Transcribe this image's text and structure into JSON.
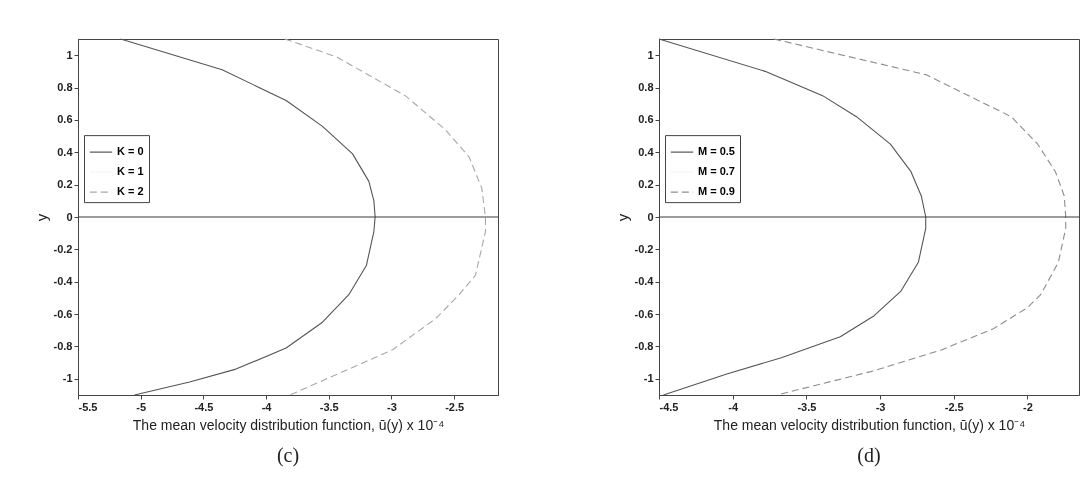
{
  "chart_data": [
    {
      "type": "line",
      "xlabel": "The mean velocity distribution function, ū(y) x 10⁻⁴",
      "ylabel": "y",
      "annotations": [
        "(c)"
      ],
      "xlim": [
        -5.5,
        -2.15
      ],
      "xticks": [
        -5.5,
        -5,
        -4.5,
        -4,
        -3.5,
        -3,
        -2.5
      ],
      "ylim": [
        -1.1,
        1.1
      ],
      "yticks": [
        -1,
        -0.8,
        -0.6,
        -0.4,
        -0.2,
        0,
        0.2,
        0.4,
        0.6,
        0.8,
        1
      ],
      "legend": "left",
      "ref_lines": [
        {
          "axis": "y",
          "value": 0,
          "color": "#3a3a3a"
        }
      ],
      "series": [
        {
          "name": "K = 0",
          "color": "#555555",
          "line_style": "solid",
          "x": [
            -5.16,
            -4.35,
            -3.84,
            -3.55,
            -3.31,
            -3.18,
            -3.14,
            -3.13,
            -3.14,
            -3.2,
            -3.34,
            -3.55,
            -3.84,
            -4.24,
            -4.61,
            -5.05
          ],
          "values": [
            1.1,
            0.91,
            0.72,
            0.56,
            0.39,
            0.22,
            0.1,
            0,
            -0.09,
            -0.3,
            -0.48,
            -0.65,
            -0.81,
            -0.94,
            -1.02,
            -1.1
          ]
        },
        {
          "name": "K = 1",
          "color": "#f4f4f4",
          "line_style": "solid",
          "x": [
            null
          ],
          "values": [
            null
          ]
        },
        {
          "name": "K = 2",
          "color": "#a8a8a8",
          "line_style": "dashed",
          "x": [
            -3.85,
            -3.44,
            -2.89,
            -2.57,
            -2.38,
            -2.28,
            -2.25,
            -2.25,
            -2.33,
            -2.46,
            -2.65,
            -2.99,
            -3.34,
            -3.81
          ],
          "values": [
            1.1,
            0.99,
            0.75,
            0.54,
            0.37,
            0.18,
            0,
            -0.09,
            -0.36,
            -0.48,
            -0.63,
            -0.82,
            -0.94,
            -1.1
          ]
        }
      ]
    },
    {
      "type": "line",
      "xlabel": "The mean velocity distribution function, ū(y) x 10⁻⁴",
      "ylabel": "y",
      "annotations": [
        "(d)"
      ],
      "xlim": [
        -4.5,
        -1.65
      ],
      "xticks": [
        -4.5,
        -4,
        -3.5,
        -3,
        -2.5,
        -2
      ],
      "ylim": [
        -1.1,
        1.1
      ],
      "yticks": [
        -1,
        -0.8,
        -0.6,
        -0.4,
        -0.2,
        0,
        0.2,
        0.4,
        0.6,
        0.8,
        1
      ],
      "legend": "left",
      "ref_lines": [
        {
          "axis": "y",
          "value": 0,
          "color": "#3a3a3a"
        }
      ],
      "series": [
        {
          "name": "M = 0.5",
          "color": "#555555",
          "line_style": "solid",
          "x": [
            -4.5,
            -3.78,
            -3.39,
            -3.16,
            -2.93,
            -2.79,
            -2.72,
            -2.69,
            -2.69,
            -2.74,
            -2.86,
            -3.04,
            -3.27,
            -3.67,
            -4.04,
            -4.47
          ],
          "values": [
            1.1,
            0.9,
            0.75,
            0.62,
            0.45,
            0.28,
            0.13,
            0,
            -0.07,
            -0.28,
            -0.46,
            -0.61,
            -0.74,
            -0.87,
            -0.97,
            -1.1
          ]
        },
        {
          "name": "M = 0.7",
          "color": "#f4f4f4",
          "line_style": "solid",
          "x": [
            null
          ],
          "values": [
            null
          ]
        },
        {
          "name": "M = 0.9",
          "color": "#8c8c8c",
          "line_style": "dashed",
          "x": [
            -3.72,
            -3.16,
            -2.69,
            -2.11,
            -1.93,
            -1.81,
            -1.75,
            -1.74,
            -1.74,
            -1.79,
            -1.91,
            -2.0,
            -2.23,
            -2.58,
            -3.04,
            -3.7
          ],
          "values": [
            1.1,
            0.98,
            0.88,
            0.62,
            0.45,
            0.28,
            0.13,
            0,
            -0.07,
            -0.28,
            -0.48,
            -0.56,
            -0.69,
            -0.82,
            -0.95,
            -1.1
          ]
        }
      ]
    }
  ]
}
